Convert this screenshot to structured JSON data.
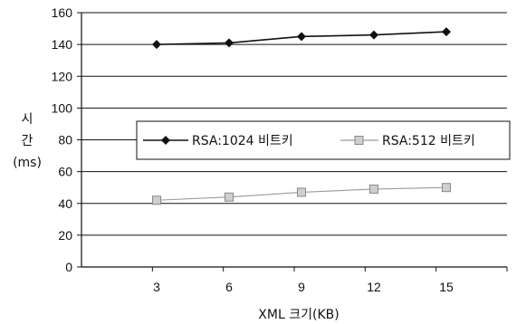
{
  "chart_data": {
    "type": "line",
    "categories": [
      "3",
      "6",
      "9",
      "12",
      "15"
    ],
    "ylim": [
      0,
      160
    ],
    "yticks": [
      0,
      20,
      40,
      60,
      80,
      100,
      120,
      140,
      160
    ],
    "grid": true,
    "xlabel": "XML 크기(KB)",
    "ylabel": [
      "시",
      "간",
      "(ms)"
    ],
    "legend_position": "center",
    "series": [
      {
        "name": "RSA:1024 비트키",
        "values": [
          140,
          141,
          145,
          146,
          148
        ],
        "color": "#111111",
        "marker": "diamond"
      },
      {
        "name": "RSA:512 비트키",
        "values": [
          42,
          44,
          47,
          49,
          50
        ],
        "color": "#9a9a9a",
        "marker": "square"
      }
    ]
  }
}
